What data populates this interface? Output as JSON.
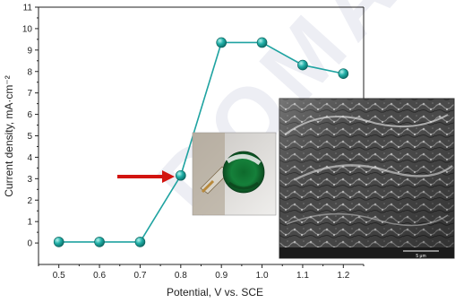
{
  "chart_data": {
    "type": "line",
    "title": "",
    "xlabel": "Potential, V vs. SCE",
    "ylabel": "Current density, mA·cm⁻²",
    "x": [
      0.5,
      0.6,
      0.7,
      0.8,
      0.9,
      1.0,
      1.1,
      1.2
    ],
    "series": [
      {
        "values": [
          0.05,
          0.05,
          0.05,
          3.15,
          9.35,
          9.35,
          8.3,
          7.9
        ],
        "color": "#1fa3a1"
      }
    ],
    "xlim": [
      0.45,
      1.25
    ],
    "ylim": [
      -1,
      11
    ],
    "xticks": [
      "0.5",
      "0.6",
      "0.7",
      "0.8",
      "0.9",
      "1.0",
      "1.1",
      "1.2"
    ],
    "yticks": [
      "0",
      "1",
      "2",
      "3",
      "4",
      "5",
      "6",
      "7",
      "8",
      "9",
      "10",
      "11"
    ],
    "grid": false,
    "legend": "none",
    "marker": "sphere",
    "annotation_arrow_color": "#d2140f"
  },
  "sem_scale_bar": "5 μm",
  "watermark_text": "DOMAIN"
}
